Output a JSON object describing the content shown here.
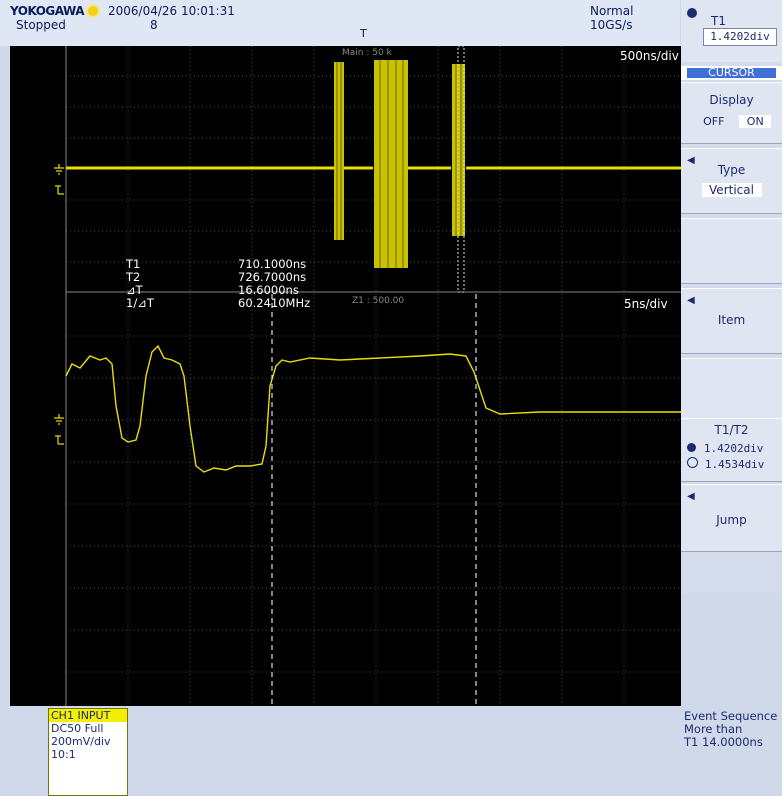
{
  "header": {
    "brand": "YOKOGAWA",
    "datetime": "2006/04/26 10:01:31",
    "status": "Stopped",
    "count": "8",
    "trigger_mode": "Normal",
    "sample_rate": "10GS/s",
    "trigger_marker": "T"
  },
  "main_window": {
    "label": "Main : 50 k",
    "timebase": "500ns/div"
  },
  "zoom_window": {
    "label": "Z1 : 500.00",
    "timebase": "5ns/div"
  },
  "measurements": [
    {
      "name": "T1",
      "value": "710.1000ns"
    },
    {
      "name": "T2",
      "value": "726.7000ns"
    },
    {
      "name": "⊿T",
      "value": "16.6000ns"
    },
    {
      "name": "1/⊿T",
      "value": "60.2410MHz"
    }
  ],
  "side_panel": {
    "t1_label": "T1",
    "t1_value": "1.4202div",
    "cursor_title": "CURSOR",
    "display_label": "Display",
    "display_off": "OFF",
    "display_on": "ON",
    "type_label": "Type",
    "type_value": "Vertical",
    "item_label": "Item",
    "t1t2_label": "T1/T2",
    "t1_div": "1.4202div",
    "t2_div": "1.4534div",
    "jump_label": "Jump"
  },
  "channel": {
    "title": "CH1  INPUT",
    "coupling": "DC50 Full",
    "scale": "200mV/div",
    "probe": "10:1"
  },
  "trigger_info": {
    "line1": "Event Sequence",
    "line2": "More than",
    "line3": "T1   14.0000ns"
  },
  "colors": {
    "trace": "#e8e000",
    "background": "#000000",
    "panel": "#d4dcec",
    "accent": "#1d2a70"
  }
}
